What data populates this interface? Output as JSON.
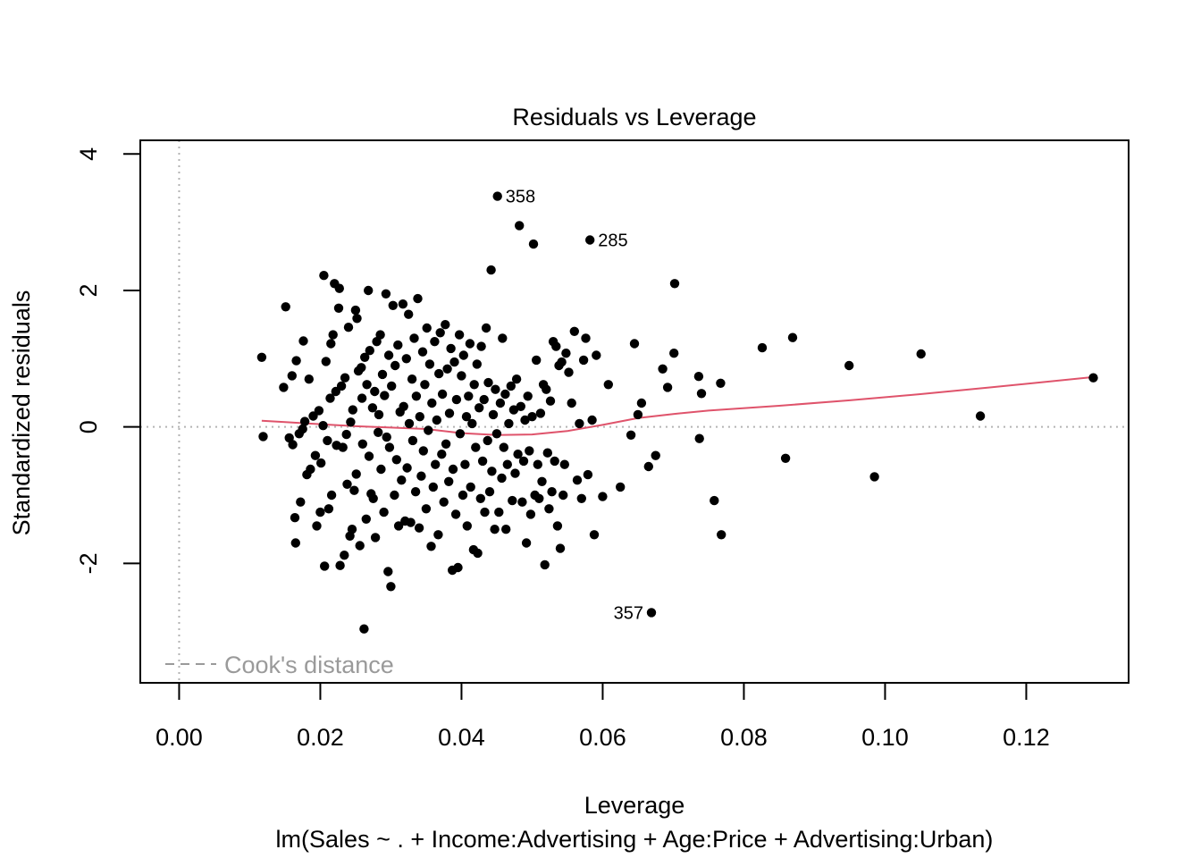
{
  "chart_data": {
    "type": "scatter",
    "title": "Residuals vs Leverage",
    "xlabel": "Leverage",
    "ylabel": "Standardized residuals",
    "subtitle": "lm(Sales ~ . + Income:Advertising + Age:Price + Advertising:Urban)",
    "xlim": [
      -0.0055,
      0.1345
    ],
    "ylim": [
      -3.75,
      4.2
    ],
    "x_ticks": [
      0.0,
      0.02,
      0.04,
      0.06,
      0.08,
      0.1,
      0.12
    ],
    "x_tick_labels": [
      "0.00",
      "0.02",
      "0.04",
      "0.06",
      "0.08",
      "0.10",
      "0.12"
    ],
    "y_ticks": [
      -2,
      0,
      2,
      4
    ],
    "y_tick_labels": [
      "-2",
      "0",
      "2",
      "4"
    ],
    "reference_lines": {
      "h": 0,
      "v": 0,
      "style": "dotted",
      "color": "#b3b3b3"
    },
    "legend": {
      "position": "bottom-left",
      "label": "Cook's distance",
      "style": "dashed",
      "color": "#9a9a9a"
    },
    "point_color": "#000000",
    "smooth_color": "#DF536B",
    "labeled_points": [
      {
        "label": "358",
        "x": 0.0451,
        "y": 3.38,
        "side": "right"
      },
      {
        "label": "285",
        "x": 0.0582,
        "y": 2.74,
        "side": "right"
      },
      {
        "label": "357",
        "x": 0.0669,
        "y": -2.72,
        "side": "left"
      }
    ],
    "points": [
      [
        0.0117,
        1.02
      ],
      [
        0.0119,
        -0.14
      ],
      [
        0.0148,
        0.58
      ],
      [
        0.0151,
        1.76
      ],
      [
        0.0156,
        -0.16
      ],
      [
        0.016,
        0.75
      ],
      [
        0.0161,
        -0.26
      ],
      [
        0.0164,
        -1.33
      ],
      [
        0.0165,
        -1.7
      ],
      [
        0.0166,
        0.97
      ],
      [
        0.017,
        -0.1
      ],
      [
        0.0172,
        -1.1
      ],
      [
        0.0175,
        -0.03
      ],
      [
        0.0176,
        1.26
      ],
      [
        0.0178,
        0.08
      ],
      [
        0.0181,
        -0.7
      ],
      [
        0.0184,
        0.7
      ],
      [
        0.0186,
        -0.62
      ],
      [
        0.019,
        0.16
      ],
      [
        0.0193,
        -0.42
      ],
      [
        0.0195,
        -1.45
      ],
      [
        0.0198,
        0.24
      ],
      [
        0.02,
        -1.25
      ],
      [
        0.0201,
        -0.53
      ],
      [
        0.0204,
        0.02
      ],
      [
        0.0205,
        2.22
      ],
      [
        0.0206,
        -2.04
      ],
      [
        0.0208,
        0.96
      ],
      [
        0.021,
        -0.2
      ],
      [
        0.0212,
        -1.2
      ],
      [
        0.0214,
        0.42
      ],
      [
        0.0215,
        1.22
      ],
      [
        0.0216,
        -1.0
      ],
      [
        0.0218,
        1.35
      ],
      [
        0.022,
        2.1
      ],
      [
        0.0222,
        0.52
      ],
      [
        0.0223,
        -0.27
      ],
      [
        0.0226,
        1.74
      ],
      [
        0.0227,
        2.03
      ],
      [
        0.0228,
        -2.03
      ],
      [
        0.023,
        0.6
      ],
      [
        0.0232,
        -0.3
      ],
      [
        0.0234,
        -1.88
      ],
      [
        0.0235,
        0.72
      ],
      [
        0.0237,
        -0.11
      ],
      [
        0.0238,
        -0.84
      ],
      [
        0.024,
        1.46
      ],
      [
        0.0242,
        -1.6
      ],
      [
        0.0243,
        0.07
      ],
      [
        0.0245,
        -1.5
      ],
      [
        0.0246,
        0.25
      ],
      [
        0.0248,
        -0.93
      ],
      [
        0.025,
        1.71
      ],
      [
        0.0251,
        -0.69
      ],
      [
        0.0252,
        1.59
      ],
      [
        0.0254,
        0.82
      ],
      [
        0.0256,
        -1.74
      ],
      [
        0.0258,
        0.87
      ],
      [
        0.0259,
        0.42
      ],
      [
        0.026,
        -0.25
      ],
      [
        0.0262,
        -2.96
      ],
      [
        0.0263,
        1.02
      ],
      [
        0.0265,
        -1.35
      ],
      [
        0.0266,
        0.62
      ],
      [
        0.0268,
        2.0
      ],
      [
        0.0269,
        -0.43
      ],
      [
        0.027,
        1.12
      ],
      [
        0.0272,
        -0.98
      ],
      [
        0.0274,
        0.28
      ],
      [
        0.0275,
        -1.05
      ],
      [
        0.0277,
        0.52
      ],
      [
        0.0278,
        -1.62
      ],
      [
        0.028,
        1.25
      ],
      [
        0.0282,
        -0.08
      ],
      [
        0.0283,
        0.18
      ],
      [
        0.0285,
        1.35
      ],
      [
        0.0286,
        -0.62
      ],
      [
        0.0288,
        0.77
      ],
      [
        0.029,
        -1.25
      ],
      [
        0.0291,
        0.46
      ],
      [
        0.0293,
        1.95
      ],
      [
        0.0294,
        -0.15
      ],
      [
        0.0296,
        -2.12
      ],
      [
        0.0297,
        1.05
      ],
      [
        0.0298,
        -0.3
      ],
      [
        0.03,
        -2.34
      ],
      [
        0.0301,
        0.6
      ],
      [
        0.0303,
        1.78
      ],
      [
        0.0305,
        -1.0
      ],
      [
        0.0306,
        0.9
      ],
      [
        0.0308,
        -0.48
      ],
      [
        0.031,
        1.2
      ],
      [
        0.0311,
        -1.45
      ],
      [
        0.0313,
        0.22
      ],
      [
        0.0315,
        -0.78
      ],
      [
        0.0317,
        1.8
      ],
      [
        0.0318,
        0.3
      ],
      [
        0.032,
        -1.38
      ],
      [
        0.0322,
        1.0
      ],
      [
        0.0323,
        -0.6
      ],
      [
        0.0325,
        1.65
      ],
      [
        0.0326,
        0.05
      ],
      [
        0.0328,
        -1.4
      ],
      [
        0.033,
        0.7
      ],
      [
        0.0331,
        -0.2
      ],
      [
        0.0333,
        1.3
      ],
      [
        0.0335,
        -0.95
      ],
      [
        0.0336,
        0.45
      ],
      [
        0.0338,
        1.88
      ],
      [
        0.034,
        -1.48
      ],
      [
        0.0341,
        0.15
      ],
      [
        0.0343,
        -0.72
      ],
      [
        0.0345,
        1.1
      ],
      [
        0.0346,
        -0.35
      ],
      [
        0.0348,
        0.62
      ],
      [
        0.035,
        -1.2
      ],
      [
        0.0351,
        1.45
      ],
      [
        0.0353,
        -0.05
      ],
      [
        0.0355,
        0.92
      ],
      [
        0.0357,
        -1.75
      ],
      [
        0.0358,
        0.35
      ],
      [
        0.036,
        -0.88
      ],
      [
        0.0362,
        1.25
      ],
      [
        0.0363,
        -0.55
      ],
      [
        0.0365,
        0.1
      ],
      [
        0.0367,
        -1.58
      ],
      [
        0.0368,
        0.78
      ],
      [
        0.037,
        1.38
      ],
      [
        0.0372,
        -0.4
      ],
      [
        0.0373,
        0.48
      ],
      [
        0.0375,
        -1.1
      ],
      [
        0.0377,
        1.5
      ],
      [
        0.0378,
        -0.25
      ],
      [
        0.038,
        0.85
      ],
      [
        0.0382,
        -0.8
      ],
      [
        0.0383,
        0.2
      ],
      [
        0.0385,
        1.15
      ],
      [
        0.0387,
        -2.1
      ],
      [
        0.0388,
        -0.62
      ],
      [
        0.039,
        0.95
      ],
      [
        0.0392,
        -1.28
      ],
      [
        0.0393,
        0.4
      ],
      [
        0.0395,
        -2.06
      ],
      [
        0.0397,
        1.35
      ],
      [
        0.0398,
        -0.1
      ],
      [
        0.04,
        0.75
      ],
      [
        0.0402,
        -1.0
      ],
      [
        0.0403,
        1.05
      ],
      [
        0.0405,
        -0.55
      ],
      [
        0.0407,
        0.15
      ],
      [
        0.0408,
        -1.45
      ],
      [
        0.041,
        0.45
      ],
      [
        0.0412,
        1.22
      ],
      [
        0.0413,
        -0.88
      ],
      [
        0.0415,
        0.05
      ],
      [
        0.0417,
        -1.8
      ],
      [
        0.0418,
        0.62
      ],
      [
        0.042,
        -0.3
      ],
      [
        0.0422,
        0.92
      ],
      [
        0.0423,
        -1.85
      ],
      [
        0.0425,
        0.28
      ],
      [
        0.0427,
        -1.05
      ],
      [
        0.0428,
        1.18
      ],
      [
        0.043,
        -0.5
      ],
      [
        0.0432,
        0.4
      ],
      [
        0.0433,
        -1.25
      ],
      [
        0.0435,
        1.45
      ],
      [
        0.0437,
        -0.2
      ],
      [
        0.0438,
        0.65
      ],
      [
        0.044,
        -0.95
      ],
      [
        0.0442,
        2.3
      ],
      [
        0.0443,
        -0.65
      ],
      [
        0.0445,
        0.18
      ],
      [
        0.0447,
        -1.5
      ],
      [
        0.0448,
        0.55
      ],
      [
        0.045,
        -0.1
      ],
      [
        0.0451,
        3.38
      ],
      [
        0.0453,
        -1.25
      ],
      [
        0.0455,
        0.35
      ],
      [
        0.0457,
        -0.75
      ],
      [
        0.0458,
        1.3
      ],
      [
        0.046,
        -0.3
      ],
      [
        0.0462,
        0.48
      ],
      [
        0.0463,
        -1.5
      ],
      [
        0.0465,
        -0.55
      ],
      [
        0.0467,
        0.05
      ],
      [
        0.047,
        0.6
      ],
      [
        0.0472,
        -1.08
      ],
      [
        0.0474,
        0.25
      ],
      [
        0.0476,
        -0.68
      ],
      [
        0.0478,
        0.7
      ],
      [
        0.048,
        -0.4
      ],
      [
        0.0482,
        2.95
      ],
      [
        0.0484,
        0.3
      ],
      [
        0.0486,
        -1.1
      ],
      [
        0.0488,
        -0.5
      ],
      [
        0.049,
        0.1
      ],
      [
        0.0492,
        -1.7
      ],
      [
        0.0494,
        0.45
      ],
      [
        0.0496,
        -0.35
      ],
      [
        0.0498,
        -1.28
      ],
      [
        0.05,
        0.15
      ],
      [
        0.0502,
        2.68
      ],
      [
        0.0504,
        -1.0
      ],
      [
        0.0506,
        0.98
      ],
      [
        0.0508,
        -0.55
      ],
      [
        0.051,
        -1.05
      ],
      [
        0.0512,
        0.2
      ],
      [
        0.0514,
        -0.8
      ],
      [
        0.0516,
        0.62
      ],
      [
        0.0518,
        -2.02
      ],
      [
        0.052,
        0.55
      ],
      [
        0.0522,
        -0.38
      ],
      [
        0.0524,
        -1.2
      ],
      [
        0.0526,
        0.38
      ],
      [
        0.0528,
        -0.95
      ],
      [
        0.053,
        1.25
      ],
      [
        0.0532,
        -0.5
      ],
      [
        0.0534,
        1.18
      ],
      [
        0.0536,
        -1.45
      ],
      [
        0.0538,
        0.9
      ],
      [
        0.054,
        -1.78
      ],
      [
        0.0542,
        0.95
      ],
      [
        0.0544,
        -1.0
      ],
      [
        0.0546,
        -0.55
      ],
      [
        0.0548,
        1.08
      ],
      [
        0.0552,
        0.8
      ],
      [
        0.0556,
        0.35
      ],
      [
        0.056,
        1.4
      ],
      [
        0.0564,
        -0.78
      ],
      [
        0.0567,
        0.05
      ],
      [
        0.057,
        -1.05
      ],
      [
        0.0573,
        0.98
      ],
      [
        0.0576,
        1.3
      ],
      [
        0.0579,
        -0.7
      ],
      [
        0.0582,
        2.74
      ],
      [
        0.0585,
        0.1
      ],
      [
        0.0588,
        -1.58
      ],
      [
        0.0591,
        1.05
      ],
      [
        0.06,
        -1.02
      ],
      [
        0.0608,
        0.62
      ],
      [
        0.0625,
        -0.88
      ],
      [
        0.064,
        -0.12
      ],
      [
        0.0645,
        1.22
      ],
      [
        0.065,
        0.18
      ],
      [
        0.0655,
        0.35
      ],
      [
        0.0665,
        -0.58
      ],
      [
        0.0669,
        -2.72
      ],
      [
        0.0675,
        -0.42
      ],
      [
        0.0685,
        0.85
      ],
      [
        0.0692,
        0.58
      ],
      [
        0.0702,
        2.1
      ],
      [
        0.0701,
        1.08
      ],
      [
        0.0736,
        0.74
      ],
      [
        0.0737,
        -0.17
      ],
      [
        0.074,
        0.49
      ],
      [
        0.0758,
        -1.08
      ],
      [
        0.0767,
        0.64
      ],
      [
        0.0768,
        -1.58
      ],
      [
        0.0826,
        1.16
      ],
      [
        0.0859,
        -0.46
      ],
      [
        0.0869,
        1.31
      ],
      [
        0.0949,
        0.9
      ],
      [
        0.0985,
        -0.73
      ],
      [
        0.1051,
        1.07
      ],
      [
        0.1135,
        0.16
      ],
      [
        0.1295,
        0.72
      ]
    ],
    "smooth": [
      [
        0.0117,
        0.09
      ],
      [
        0.015,
        0.07
      ],
      [
        0.02,
        0.04
      ],
      [
        0.025,
        0.01
      ],
      [
        0.03,
        -0.01
      ],
      [
        0.035,
        -0.03
      ],
      [
        0.04,
        -0.09
      ],
      [
        0.045,
        -0.12
      ],
      [
        0.05,
        -0.11
      ],
      [
        0.055,
        -0.06
      ],
      [
        0.06,
        0.03
      ],
      [
        0.065,
        0.13
      ],
      [
        0.07,
        0.19
      ],
      [
        0.075,
        0.24
      ],
      [
        0.085,
        0.31
      ],
      [
        0.095,
        0.39
      ],
      [
        0.105,
        0.48
      ],
      [
        0.115,
        0.58
      ],
      [
        0.1295,
        0.73
      ]
    ]
  }
}
